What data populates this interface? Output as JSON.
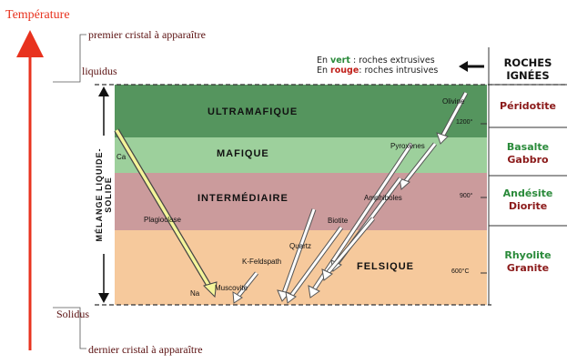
{
  "temperature_axis": {
    "label": "Température",
    "first_crystal": "premier cristal à apparaître",
    "liquidus": "liquidus",
    "solidus": "Solidus",
    "last_crystal": "dernier cristal à apparaître"
  },
  "mix_label": "MÉLANGE LIQUIDE-SOLIDE",
  "legend": {
    "line1_prefix": "En ",
    "line1_word": "vert",
    "line1_suffix": " : roches extrusives",
    "line2_prefix": "En ",
    "line2_word": "rouge",
    "line2_suffix": ": roches intrusives"
  },
  "igneous_title": [
    "ROCHES",
    "IGNÉES"
  ],
  "zones": [
    {
      "name": "ULTRAMAFIQUE",
      "color": "#55955e"
    },
    {
      "name": "MAFIQUE",
      "color": "#9dd09c"
    },
    {
      "name": "INTERMÉDIAIRE",
      "color": "#cb9b9c"
    },
    {
      "name": "FELSIQUE",
      "color": "#f6c99c"
    }
  ],
  "temperatures": [
    "1200°",
    "900°",
    "600°C"
  ],
  "minerals": {
    "olivine": "Olivine",
    "pyroxenes": "Pyroxènes",
    "amphiboles": "Amphiboles",
    "biotite": "Biotite",
    "quartz": "Quartz",
    "kfeldspath": "K-Feldspath",
    "muscovite": "Muscovite",
    "plagioclase": "Plagioclase",
    "ca": "Ca",
    "na": "Na"
  },
  "rocks": {
    "peridotite": {
      "extrusive": "",
      "intrusive": "Péridotite"
    },
    "basalte_gabbro": {
      "extrusive": "Basalte",
      "intrusive": "Gabbro"
    },
    "andesite_diorite": {
      "extrusive": "Andésite",
      "intrusive": "Diorite"
    },
    "rhyolite_granite": {
      "extrusive": "Rhyolite",
      "intrusive": "Granite"
    }
  },
  "colors": {
    "extrusive": "#2a8a3a",
    "intrusive": "#8b1a1a",
    "temperature_arrow": "#e8321e"
  }
}
